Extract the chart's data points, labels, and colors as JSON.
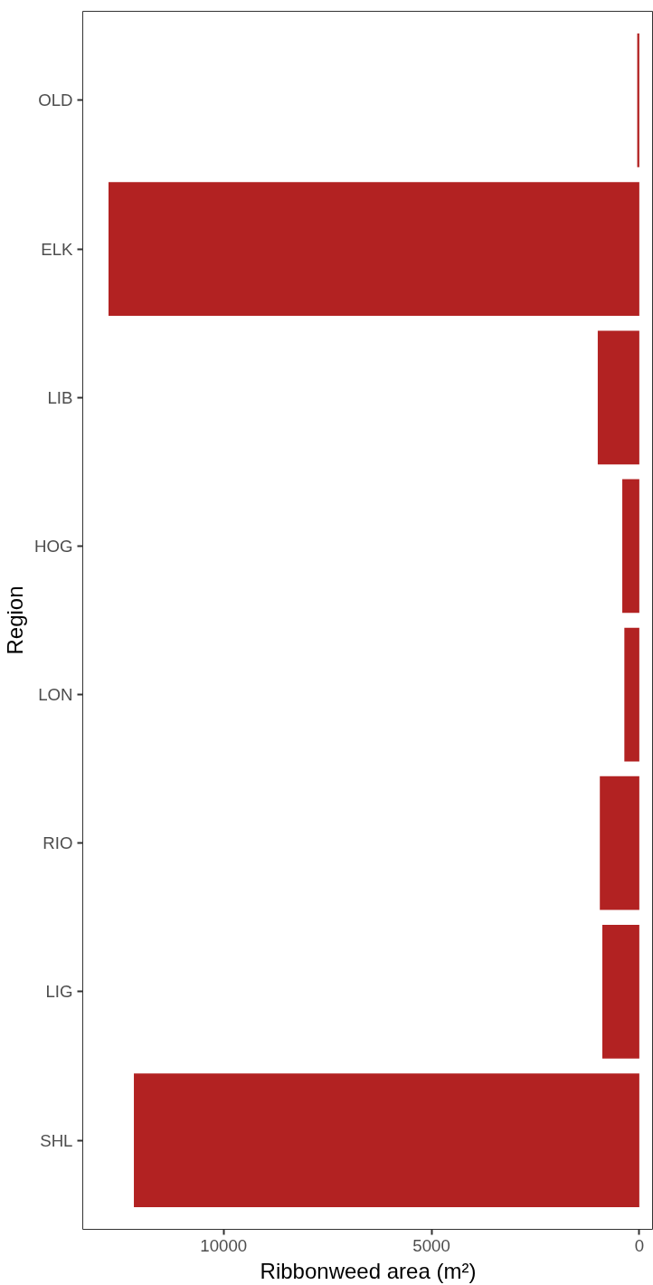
{
  "chart_data": {
    "type": "bar",
    "orientation": "horizontal",
    "xlabel": "Ribbonweed area (m²)",
    "ylabel": "Region",
    "categories": [
      "OLD",
      "ELK",
      "LIB",
      "HOG",
      "LON",
      "RIO",
      "LIG",
      "SHL"
    ],
    "values": [
      50,
      12770,
      1000,
      410,
      360,
      950,
      890,
      12160
    ],
    "color": "#b22222",
    "xlim": [
      13390,
      -340
    ],
    "xticks": [
      10000,
      5000,
      0
    ],
    "grid": false
  }
}
